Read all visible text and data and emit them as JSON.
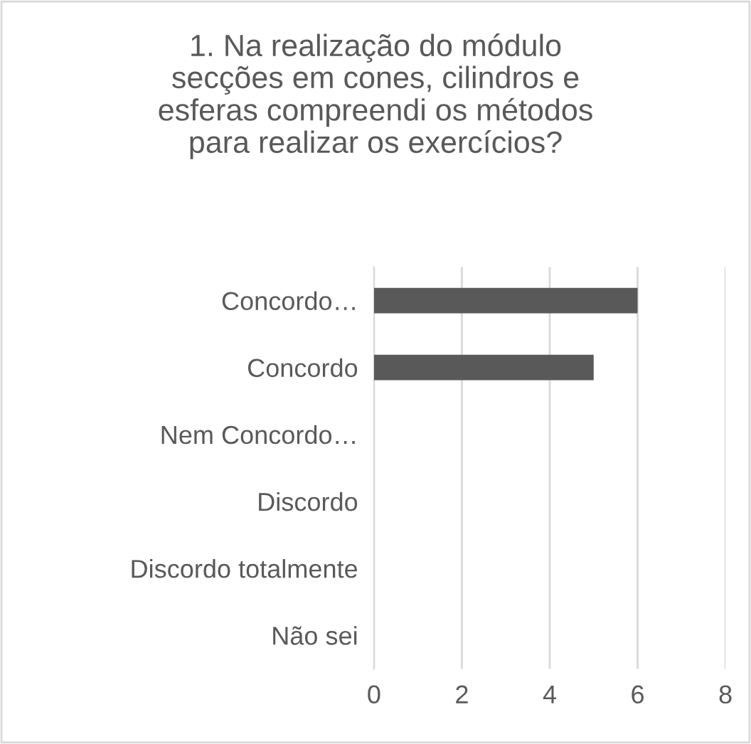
{
  "chart_data": {
    "type": "bar",
    "orientation": "horizontal",
    "title": "1. Na realização do módulo\nsecções em cones, cilindros e\nesferas compreendi os métodos\npara realizar os exercícios?",
    "categories": [
      "Concordo…",
      "Concordo",
      "Nem Concordo…",
      "Discordo",
      "Discordo totalmente",
      "Não sei"
    ],
    "values": [
      6,
      5,
      0,
      0,
      0,
      0
    ],
    "color": "#595959",
    "xlim": [
      0,
      8
    ],
    "xticks": [
      0,
      2,
      4,
      6,
      8
    ],
    "grid": "x",
    "legend": false
  }
}
